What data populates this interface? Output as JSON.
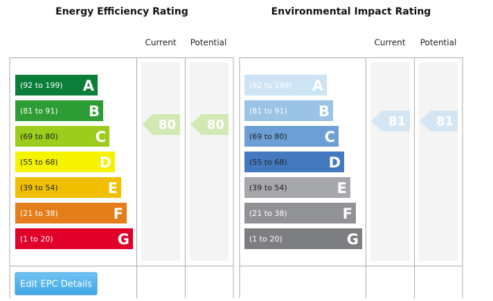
{
  "panels": [
    {
      "title": "Energy Efficiency Rating",
      "columns": [
        "Current",
        "Potential"
      ],
      "bands": [
        {
          "range": "(92 to 199)",
          "letter": "A",
          "color": "#0a7e3a",
          "text": "#ffffff"
        },
        {
          "range": "(81 to 91)",
          "letter": "B",
          "color": "#2e9d36",
          "text": "#ffffff"
        },
        {
          "range": "(69 to 80)",
          "letter": "C",
          "color": "#9ccc1c",
          "text": "#222222"
        },
        {
          "range": "(55 to 68)",
          "letter": "D",
          "color": "#f5f300",
          "text": "#222222"
        },
        {
          "range": "(39 to 54)",
          "letter": "E",
          "color": "#f0c000",
          "text": "#222222"
        },
        {
          "range": "(21 to 38)",
          "letter": "F",
          "color": "#e47e1a",
          "text": "#ffffff"
        },
        {
          "range": "(1 to 20)",
          "letter": "G",
          "color": "#e0002a",
          "text": "#ffffff"
        }
      ],
      "current": 80,
      "potential": 80,
      "arrow_color": "#d3e9b4"
    },
    {
      "title": "Environmental Impact Rating",
      "columns": [
        "Current",
        "Potential"
      ],
      "bands": [
        {
          "range": "(92 to 199)",
          "letter": "A",
          "color": "#cce4f4",
          "text": "#ffffff"
        },
        {
          "range": "(81 to 91)",
          "letter": "B",
          "color": "#9ac3e6",
          "text": "#ffffff"
        },
        {
          "range": "(69 to 80)",
          "letter": "C",
          "color": "#6b9fd6",
          "text": "#222222"
        },
        {
          "range": "(55 to 68)",
          "letter": "D",
          "color": "#4479c0",
          "text": "#222222"
        },
        {
          "range": "(39 to 54)",
          "letter": "E",
          "color": "#a6a7aa",
          "text": "#222222"
        },
        {
          "range": "(21 to 38)",
          "letter": "F",
          "color": "#919295",
          "text": "#ffffff"
        },
        {
          "range": "(1 to 20)",
          "letter": "G",
          "color": "#7d7e81",
          "text": "#ffffff"
        }
      ],
      "current": 81,
      "potential": 81,
      "arrow_color": "#d4e6f4"
    }
  ],
  "button": "Edit EPC Details"
}
